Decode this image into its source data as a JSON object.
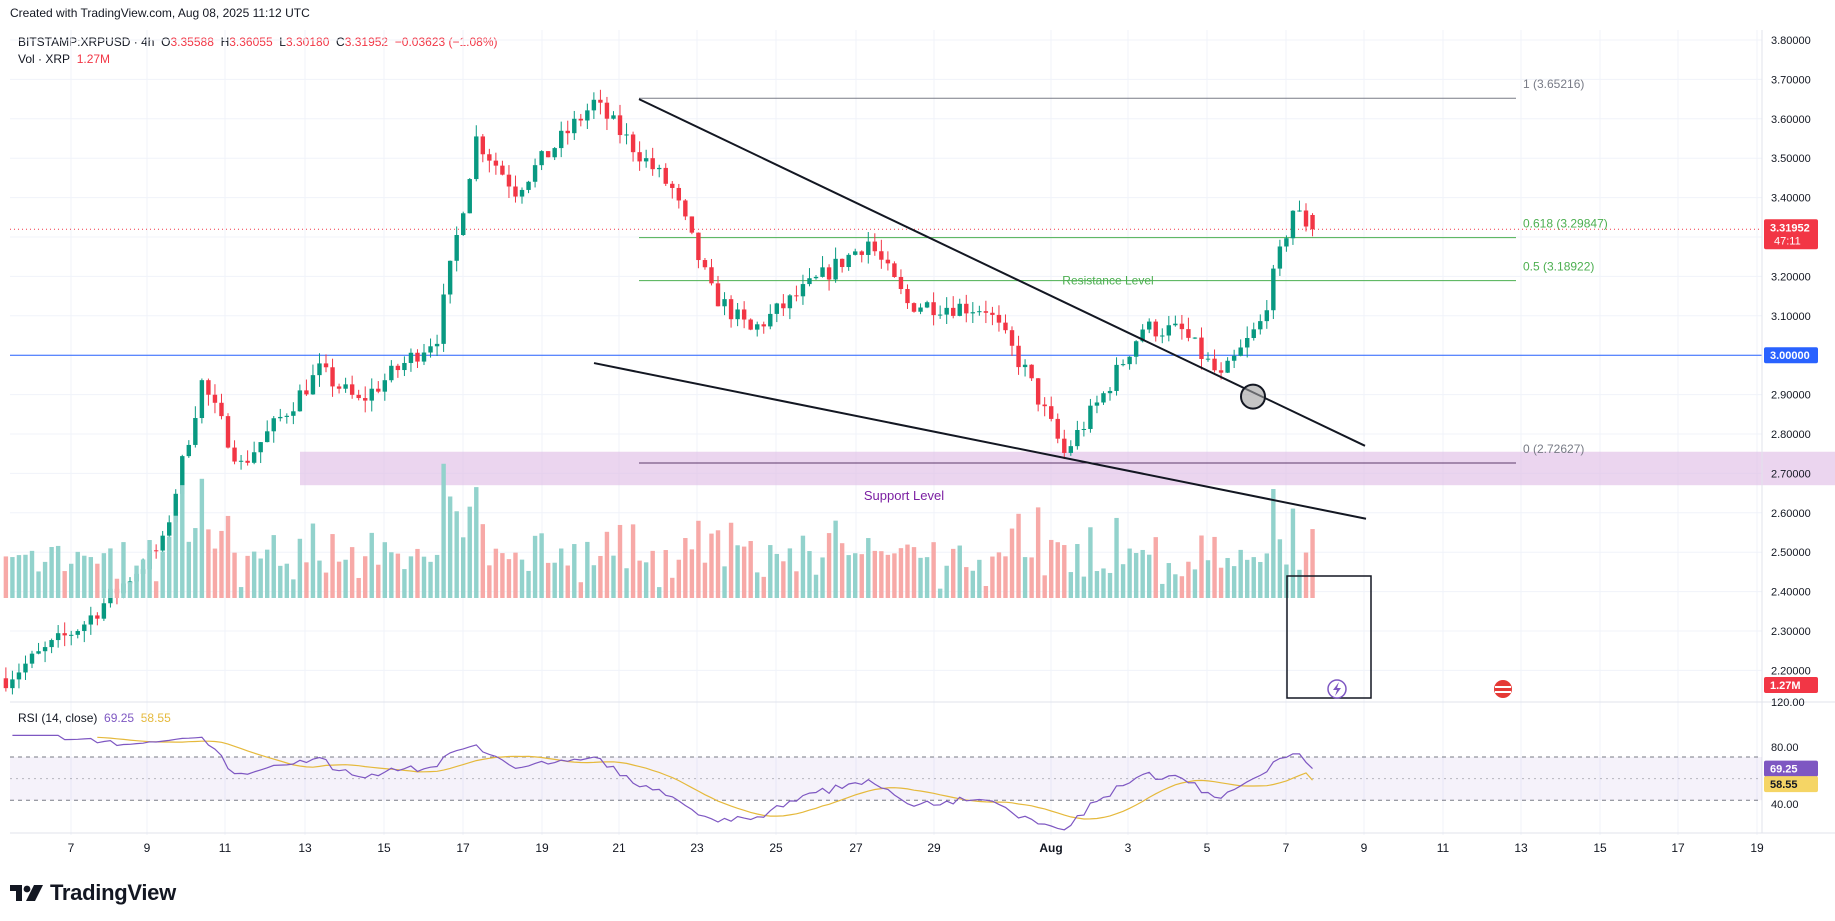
{
  "header": {
    "created_note": "Created with TradingView.com, Aug 08, 2025 11:12 UTC",
    "symbol": "BITSTAMP:XRPUSD · 4h",
    "o_label": "O",
    "o_value": "3.35588",
    "h_label": "H",
    "h_value": "3.36055",
    "l_label": "L",
    "l_value": "3.30180",
    "c_label": "C",
    "c_value": "3.31952",
    "change": "−0.03623 (−1.08%)",
    "vol_label": "Vol · XRP",
    "vol_value": "1.27M"
  },
  "rsi_legend": {
    "label": "RSI (14, close)",
    "rsi_value": "69.25",
    "ma_value": "58.55"
  },
  "brand": {
    "name": "TradingView"
  },
  "colors": {
    "up": "#089981",
    "down": "#f23645",
    "vol_up": "#92d2cc",
    "vol_down": "#f7a9a7",
    "fib": "#4caf50",
    "support_zone": "#e1bee7",
    "rsi": "#7e57c2",
    "rsi_ma": "#e5b93c",
    "hline": "#2962ff"
  },
  "chart_data": {
    "type": "candlestick",
    "price_axis": {
      "ylim": [
        2.1,
        3.83
      ],
      "ticks": [
        "3.80000",
        "3.70000",
        "3.60000",
        "3.50000",
        "3.40000",
        "3.30000",
        "3.20000",
        "3.10000",
        "3.00000",
        "2.90000",
        "2.80000",
        "2.70000",
        "2.60000",
        "2.50000",
        "2.40000",
        "2.30000",
        "2.20000"
      ]
    },
    "time_axis": {
      "labels": [
        "7",
        "9",
        "11",
        "13",
        "15",
        "17",
        "19",
        "21",
        "23",
        "25",
        "27",
        "29",
        "Aug",
        "3",
        "5",
        "7",
        "9",
        "11",
        "13",
        "15",
        "17",
        "19"
      ]
    },
    "last_price": {
      "value": "3.31952",
      "countdown": "47:11"
    },
    "horizontal_line": {
      "value": "3.00000"
    },
    "volume_badge": "1.27M",
    "fib_levels": [
      {
        "label": "1 (3.65216)",
        "value": 3.65216
      },
      {
        "label": "0.618 (3.29847)",
        "value": 3.29847
      },
      {
        "label": "0.5 (3.18922)",
        "value": 3.18922
      },
      {
        "label": "0 (2.72627)",
        "value": 2.72627
      }
    ],
    "annotations": {
      "resistance": "Resistance Level",
      "support": "Support Level"
    },
    "support_zone": [
      2.67,
      2.755
    ],
    "rsi": {
      "period": 14,
      "value": 69.25,
      "ma": 58.55,
      "levels": [
        "80.00",
        "40.00"
      ],
      "axis_top": "120.00"
    },
    "key_points": [
      {
        "x": "Jul 6",
        "close": 2.18
      },
      {
        "x": "Jul 8",
        "close": 2.32
      },
      {
        "x": "Jul 10",
        "close": 2.52
      },
      {
        "x": "Jul 11",
        "close": 2.93
      },
      {
        "x": "Jul 12",
        "close": 2.72
      },
      {
        "x": "Jul 14",
        "close": 2.96
      },
      {
        "x": "Jul 15",
        "close": 2.88
      },
      {
        "x": "Jul 17",
        "close": 3.05
      },
      {
        "x": "Jul 18",
        "close": 3.55
      },
      {
        "x": "Jul 19",
        "close": 3.42
      },
      {
        "x": "Jul 21",
        "close": 3.64
      },
      {
        "x": "Jul 23",
        "close": 3.42
      },
      {
        "x": "Jul 24",
        "close": 3.16
      },
      {
        "x": "Jul 25",
        "close": 3.06
      },
      {
        "x": "Jul 28",
        "close": 3.29
      },
      {
        "x": "Jul 29",
        "close": 3.13
      },
      {
        "x": "Jul 31",
        "close": 3.12
      },
      {
        "x": "Aug 1",
        "close": 2.96
      },
      {
        "x": "Aug 2",
        "close": 2.75
      },
      {
        "x": "Aug 3",
        "close": 2.9
      },
      {
        "x": "Aug 4",
        "close": 3.07
      },
      {
        "x": "Aug 5",
        "close": 3.06
      },
      {
        "x": "Aug 6",
        "close": 2.94
      },
      {
        "x": "Aug 7",
        "close": 3.08
      },
      {
        "x": "Aug 7 20:00",
        "close": 3.37
      },
      {
        "x": "Aug 8 08:00",
        "close": 3.31952
      }
    ]
  }
}
